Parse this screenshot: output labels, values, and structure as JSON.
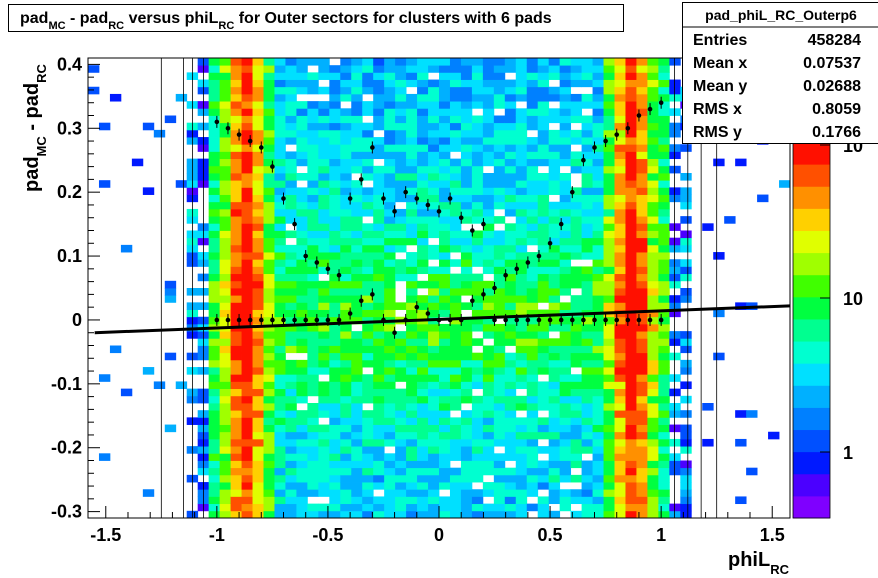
{
  "chart_data": {
    "type": "heatmap",
    "title": {
      "t1": "pad",
      "t1sub": "MC",
      "t2": " - pad",
      "t2sub": "RC",
      "t3": " versus phiL",
      "t3sub": "RC",
      "t4": " for Outer sectors for clusters with 6 pads"
    },
    "xlabel": {
      "main": "phiL",
      "sub": "RC"
    },
    "ylabel": {
      "p1": "pad",
      "p1sub": "MC",
      "p2": " - pad",
      "p2sub": "RC"
    },
    "xlim": [
      -1.58,
      1.58
    ],
    "ylim": [
      -0.31,
      0.41
    ],
    "x_ticks": [
      "-1.5",
      "-1",
      "-0.5",
      "0",
      "0.5",
      "1",
      "1.5"
    ],
    "y_ticks": [
      "-0.3",
      "-0.2",
      "-0.1",
      "0",
      "0.1",
      "0.2",
      "0.3",
      "0.4"
    ],
    "z_scale": "log",
    "z_ticks": [
      "1",
      "10",
      "10"
    ],
    "z_ticks_exp": "2",
    "stats": {
      "name": "pad_phiL_RC_Outerp6",
      "rows": [
        {
          "label": "Entries",
          "value": "458284"
        },
        {
          "label": "Mean x",
          "value": "0.07537"
        },
        {
          "label": "Mean y",
          "value": "0.02688"
        },
        {
          "label": "RMS x",
          "value": "0.8059"
        },
        {
          "label": "RMS y",
          "value": "0.1766"
        }
      ]
    },
    "profile": {
      "x": [
        -1.0,
        -0.95,
        -0.9,
        -0.85,
        -0.8,
        -0.75,
        -0.7,
        -0.65,
        -0.6,
        -0.55,
        -0.5,
        -0.45,
        -0.4,
        -0.35,
        -0.3,
        -0.25,
        -0.2,
        -0.15,
        -0.1,
        -0.05,
        0.0,
        0.05,
        0.1,
        0.15,
        0.2,
        0.25,
        0.3,
        0.35,
        0.4,
        0.45,
        0.5,
        0.55,
        0.6,
        0.65,
        0.7,
        0.75,
        0.8,
        0.85,
        0.9,
        0.95,
        1.0
      ],
      "upper": [
        0.31,
        0.3,
        0.29,
        0.28,
        0.27,
        0.24,
        0.19,
        0.15,
        0.1,
        0.09,
        0.08,
        0.07,
        0.19,
        0.22,
        0.27,
        0.19,
        0.17,
        0.2,
        0.19,
        0.18,
        0.17,
        0.19,
        0.16,
        0.14,
        0.15,
        0.05,
        0.07,
        0.08,
        0.09,
        0.1,
        0.12,
        0.15,
        0.2,
        0.25,
        0.27,
        0.28,
        0.29,
        0.3,
        0.32,
        0.33,
        0.34
      ],
      "lower": [
        0.0,
        0.0,
        0.0,
        0.0,
        0.0,
        0.0,
        0.0,
        0.0,
        0.0,
        0.0,
        0.0,
        0.0,
        0.01,
        0.03,
        0.04,
        0.0,
        -0.02,
        0.0,
        0.02,
        0.01,
        0.0,
        0.0,
        0.0,
        0.03,
        0.04,
        0.0,
        0.0,
        0.0,
        0.0,
        0.0,
        0.0,
        0.0,
        0.0,
        0.0,
        0.0,
        0.0,
        0.0,
        0.0,
        0.0,
        0.0,
        0.0
      ]
    },
    "fit_line": {
      "x": [
        -1.55,
        1.58
      ],
      "y": [
        -0.02,
        0.022
      ]
    },
    "colors": {
      "frame": "#000000",
      "background": "#ffffff"
    }
  }
}
